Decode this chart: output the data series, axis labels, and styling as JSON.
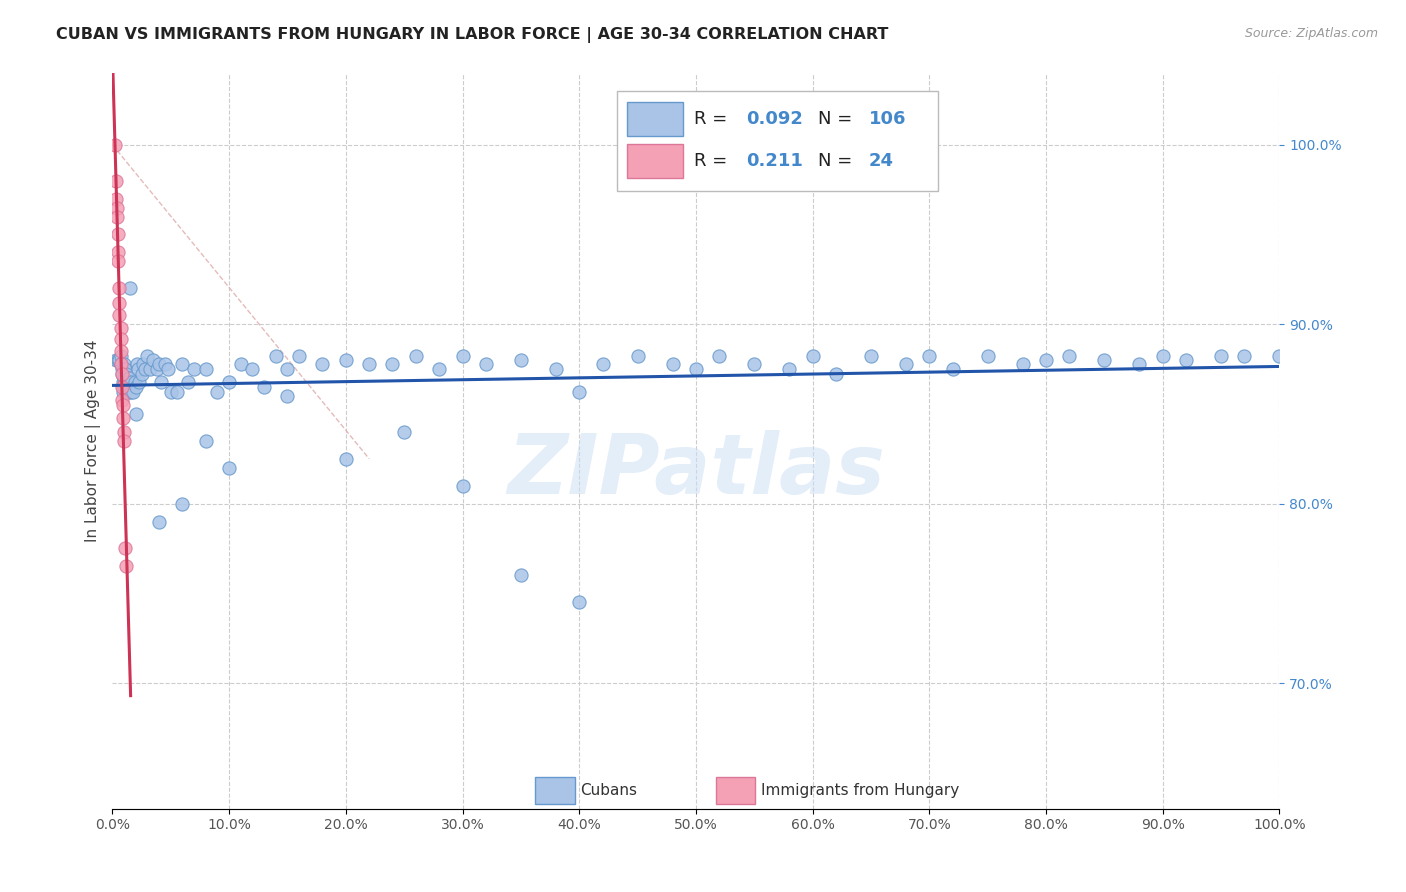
{
  "title": "CUBAN VS IMMIGRANTS FROM HUNGARY IN LABOR FORCE | AGE 30-34 CORRELATION CHART",
  "source": "Source: ZipAtlas.com",
  "ylabel": "In Labor Force | Age 30-34",
  "xticklabels": [
    "0.0%",
    "",
    "",
    "",
    "",
    "50.0%",
    "",
    "",
    "",
    "",
    "100.0%"
  ],
  "yticklabels_right": [
    "70.0%",
    "80.0%",
    "90.0%",
    "100.0%"
  ],
  "legend_label1": "Cubans",
  "legend_label2": "Immigrants from Hungary",
  "r1": 0.092,
  "n1": 106,
  "r2": 0.211,
  "n2": 24,
  "color_blue": "#aac4e8",
  "color_blue_edge": "#6699cc",
  "color_pink": "#f4a0b5",
  "color_pink_edge": "#dd7799",
  "color_blue_text": "#4488cc",
  "trend_blue": "#2255aa",
  "trend_pink": "#cc3355",
  "ref_line": "#ddaaaa",
  "background": "#ffffff",
  "grid_color": "#cccccc",
  "watermark": "ZIPatlas",
  "xlim": [
    0.0,
    1.0
  ],
  "ylim": [
    0.63,
    1.04
  ],
  "blue_x": [
    0.003,
    0.005,
    0.006,
    0.007,
    0.007,
    0.008,
    0.008,
    0.009,
    0.009,
    0.009,
    0.01,
    0.01,
    0.01,
    0.01,
    0.011,
    0.011,
    0.011,
    0.012,
    0.012,
    0.012,
    0.013,
    0.013,
    0.014,
    0.014,
    0.015,
    0.015,
    0.016,
    0.016,
    0.018,
    0.019,
    0.02,
    0.021,
    0.022,
    0.023,
    0.025,
    0.026,
    0.028,
    0.03,
    0.032,
    0.035,
    0.038,
    0.04,
    0.042,
    0.045,
    0.048,
    0.05,
    0.055,
    0.06,
    0.065,
    0.07,
    0.08,
    0.09,
    0.1,
    0.11,
    0.12,
    0.13,
    0.14,
    0.15,
    0.16,
    0.18,
    0.2,
    0.22,
    0.24,
    0.26,
    0.28,
    0.3,
    0.32,
    0.35,
    0.38,
    0.4,
    0.42,
    0.45,
    0.48,
    0.5,
    0.52,
    0.55,
    0.58,
    0.6,
    0.62,
    0.65,
    0.68,
    0.7,
    0.72,
    0.75,
    0.78,
    0.8,
    0.82,
    0.85,
    0.88,
    0.9,
    0.92,
    0.95,
    0.97,
    1.0,
    0.4,
    0.35,
    0.3,
    0.25,
    0.2,
    0.15,
    0.1,
    0.08,
    0.06,
    0.04,
    0.02,
    0.015
  ],
  "blue_y": [
    0.88,
    0.88,
    0.88,
    0.882,
    0.878,
    0.875,
    0.872,
    0.868,
    0.865,
    0.862,
    0.878,
    0.875,
    0.87,
    0.865,
    0.875,
    0.87,
    0.865,
    0.872,
    0.868,
    0.862,
    0.87,
    0.865,
    0.868,
    0.862,
    0.87,
    0.865,
    0.868,
    0.862,
    0.862,
    0.868,
    0.865,
    0.878,
    0.875,
    0.868,
    0.872,
    0.878,
    0.875,
    0.882,
    0.875,
    0.88,
    0.875,
    0.878,
    0.868,
    0.878,
    0.875,
    0.862,
    0.862,
    0.878,
    0.868,
    0.875,
    0.875,
    0.862,
    0.868,
    0.878,
    0.875,
    0.865,
    0.882,
    0.875,
    0.882,
    0.878,
    0.88,
    0.878,
    0.878,
    0.882,
    0.875,
    0.882,
    0.878,
    0.88,
    0.875,
    0.862,
    0.878,
    0.882,
    0.878,
    0.875,
    0.882,
    0.878,
    0.875,
    0.882,
    0.872,
    0.882,
    0.878,
    0.882,
    0.875,
    0.882,
    0.878,
    0.88,
    0.882,
    0.88,
    0.878,
    0.882,
    0.88,
    0.882,
    0.882,
    0.882,
    0.745,
    0.76,
    0.81,
    0.84,
    0.825,
    0.86,
    0.82,
    0.835,
    0.8,
    0.79,
    0.85,
    0.92
  ],
  "pink_x": [
    0.002,
    0.003,
    0.003,
    0.004,
    0.004,
    0.005,
    0.005,
    0.005,
    0.006,
    0.006,
    0.006,
    0.007,
    0.007,
    0.007,
    0.007,
    0.008,
    0.008,
    0.008,
    0.009,
    0.009,
    0.01,
    0.01,
    0.011,
    0.012
  ],
  "pink_y": [
    1.0,
    0.98,
    0.97,
    0.965,
    0.96,
    0.95,
    0.94,
    0.935,
    0.92,
    0.912,
    0.905,
    0.898,
    0.892,
    0.885,
    0.878,
    0.872,
    0.865,
    0.858,
    0.855,
    0.848,
    0.84,
    0.835,
    0.775,
    0.765
  ],
  "ref_line_x": [
    0.0,
    0.22
  ],
  "ref_line_y": [
    1.0,
    0.825
  ]
}
